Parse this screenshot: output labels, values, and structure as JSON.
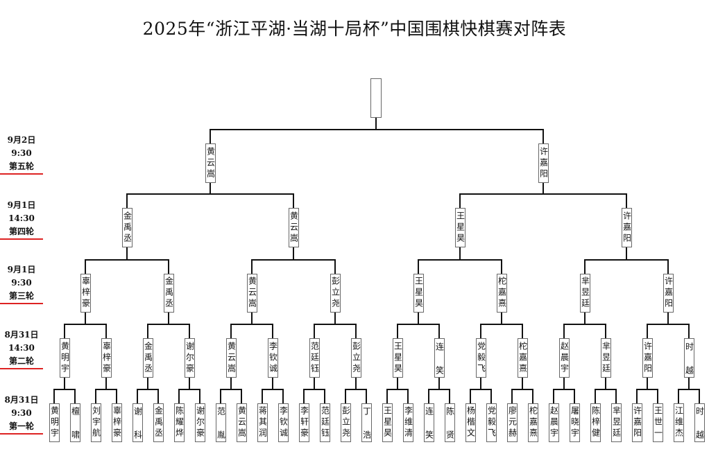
{
  "title": "2025年“浙江平湖·当湖十局杯”中国围棋快棋赛对阵表",
  "round_labels": [
    {
      "date": "9月2日",
      "time": "9:30",
      "round": "第五轮"
    },
    {
      "date": "9月1日",
      "time": "14:30",
      "round": "第四轮"
    },
    {
      "date": "9月1日",
      "time": "9:30",
      "round": "第三轮"
    },
    {
      "date": "8月31日",
      "time": "14:30",
      "round": "第二轮"
    },
    {
      "date": "8月31日",
      "time": "9:30",
      "round": "第一轮"
    }
  ],
  "accent_color": "#dd2222",
  "rounds": [
    [
      "黄明宇",
      "檀啸",
      "刘宇航",
      "辜梓豪",
      "谢科",
      "金禹丞",
      "陈耀烨",
      "谢尔豪",
      "范胤",
      "黄云嵩",
      "蒋其润",
      "李钦诚",
      "李轩豪",
      "范廷钰",
      "彭立尧",
      "丁浩",
      "王星昊",
      "李维清",
      "连笑",
      "陈贤",
      "杨楷文",
      "党毅飞",
      "廖元赫",
      "柁嘉熹",
      "赵晨宇",
      "屠晓宇",
      "陈梓健",
      "芈昱廷",
      "许嘉阳",
      "王世一",
      "江维杰",
      "时越"
    ],
    [
      "黄明宇",
      "辜梓豪",
      "金禹丞",
      "谢尔豪",
      "黄云嵩",
      "李钦诚",
      "范廷钰",
      "彭立尧",
      "王星昊",
      "连笑",
      "党毅飞",
      "柁嘉熹",
      "赵晨宇",
      "芈昱廷",
      "许嘉阳",
      "时越"
    ],
    [
      "辜梓豪",
      "金禹丞",
      "黄云嵩",
      "彭立尧",
      "王星昊",
      "柁嘉熹",
      "芈昱廷",
      "许嘉阳"
    ],
    [
      "金禹丞",
      "黄云嵩",
      "王星昊",
      "许嘉阳"
    ],
    [
      "黄云嵩",
      "许嘉阳"
    ],
    [
      ""
    ]
  ]
}
